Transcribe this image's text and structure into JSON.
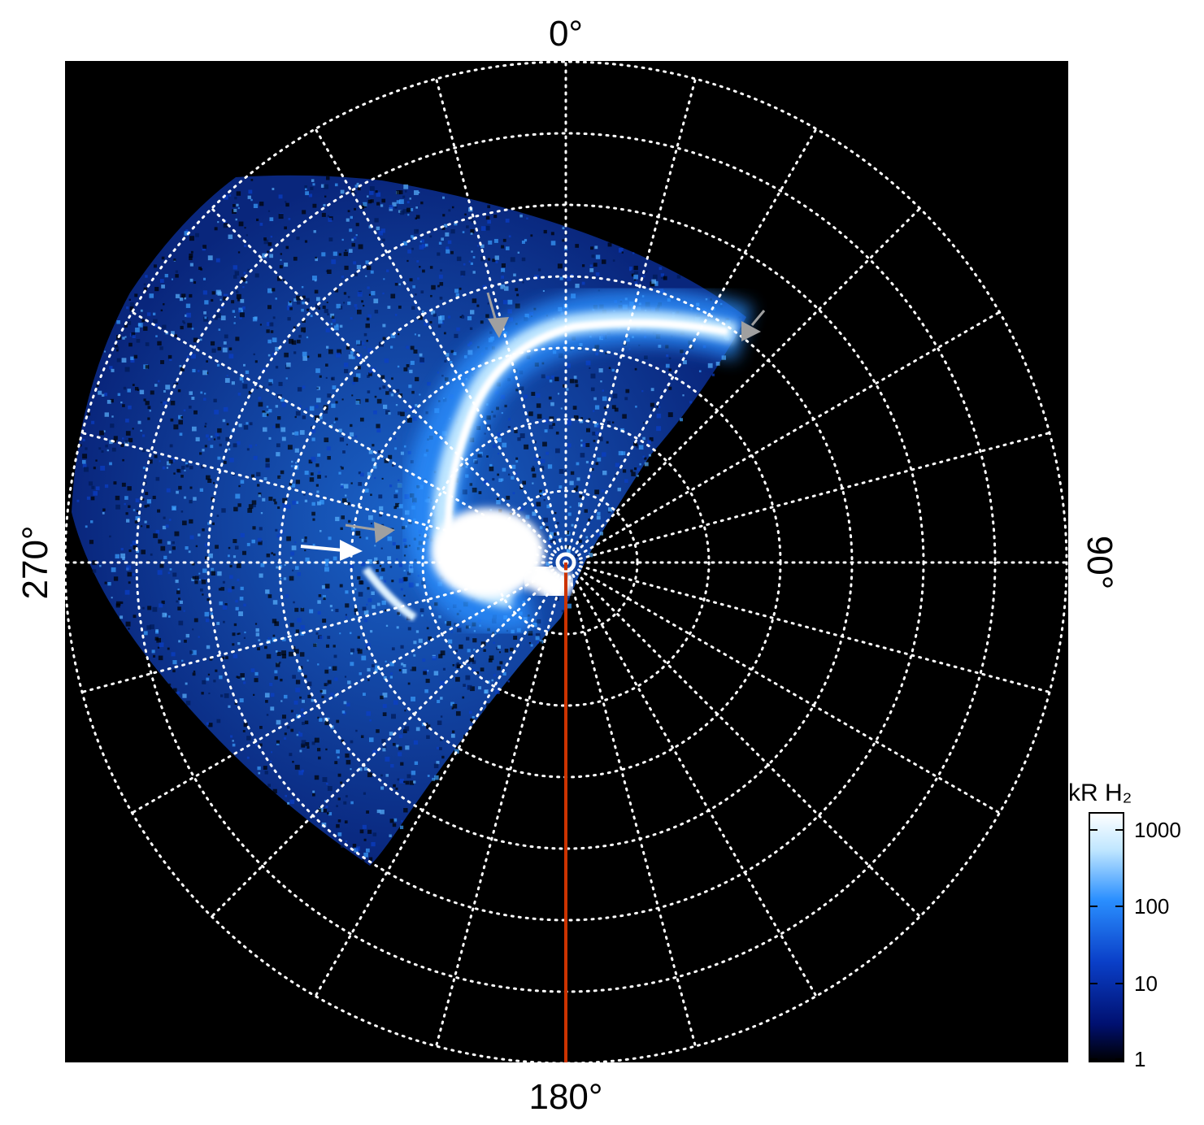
{
  "figure": {
    "type": "polar auroral projection",
    "background": "#000000",
    "grid": {
      "on": true,
      "style": "dotted",
      "color": "#ffffff",
      "rings": 7,
      "spokes_deg_step": 15
    },
    "meridian_line_color": "#cc3300",
    "emission_colors": {
      "dim": "#0a2a8a",
      "mid": "#1e7fff",
      "bright": "#bfe6ff",
      "peak": "#ffffff"
    }
  },
  "labels": {
    "top": "0°",
    "bottom": "180°",
    "left": "270°",
    "right": "90°"
  },
  "colorbar": {
    "title": "kR H₂",
    "scale": "log",
    "range": [
      1,
      1000
    ],
    "ticks": [
      "1000",
      "100",
      "10",
      "1"
    ],
    "colors": [
      "#ffffff",
      "#bfe6ff",
      "#2a8fff",
      "#0a3fc8",
      "#001070",
      "#000000"
    ]
  },
  "arrows": [
    {
      "name": "gray-arrow-top",
      "color": "#a0a0a0"
    },
    {
      "name": "gray-arrow-right",
      "color": "#a0a0a0"
    },
    {
      "name": "gray-arrow-left",
      "color": "#a0a0a0"
    },
    {
      "name": "white-arrow-left",
      "color": "#ffffff"
    }
  ]
}
